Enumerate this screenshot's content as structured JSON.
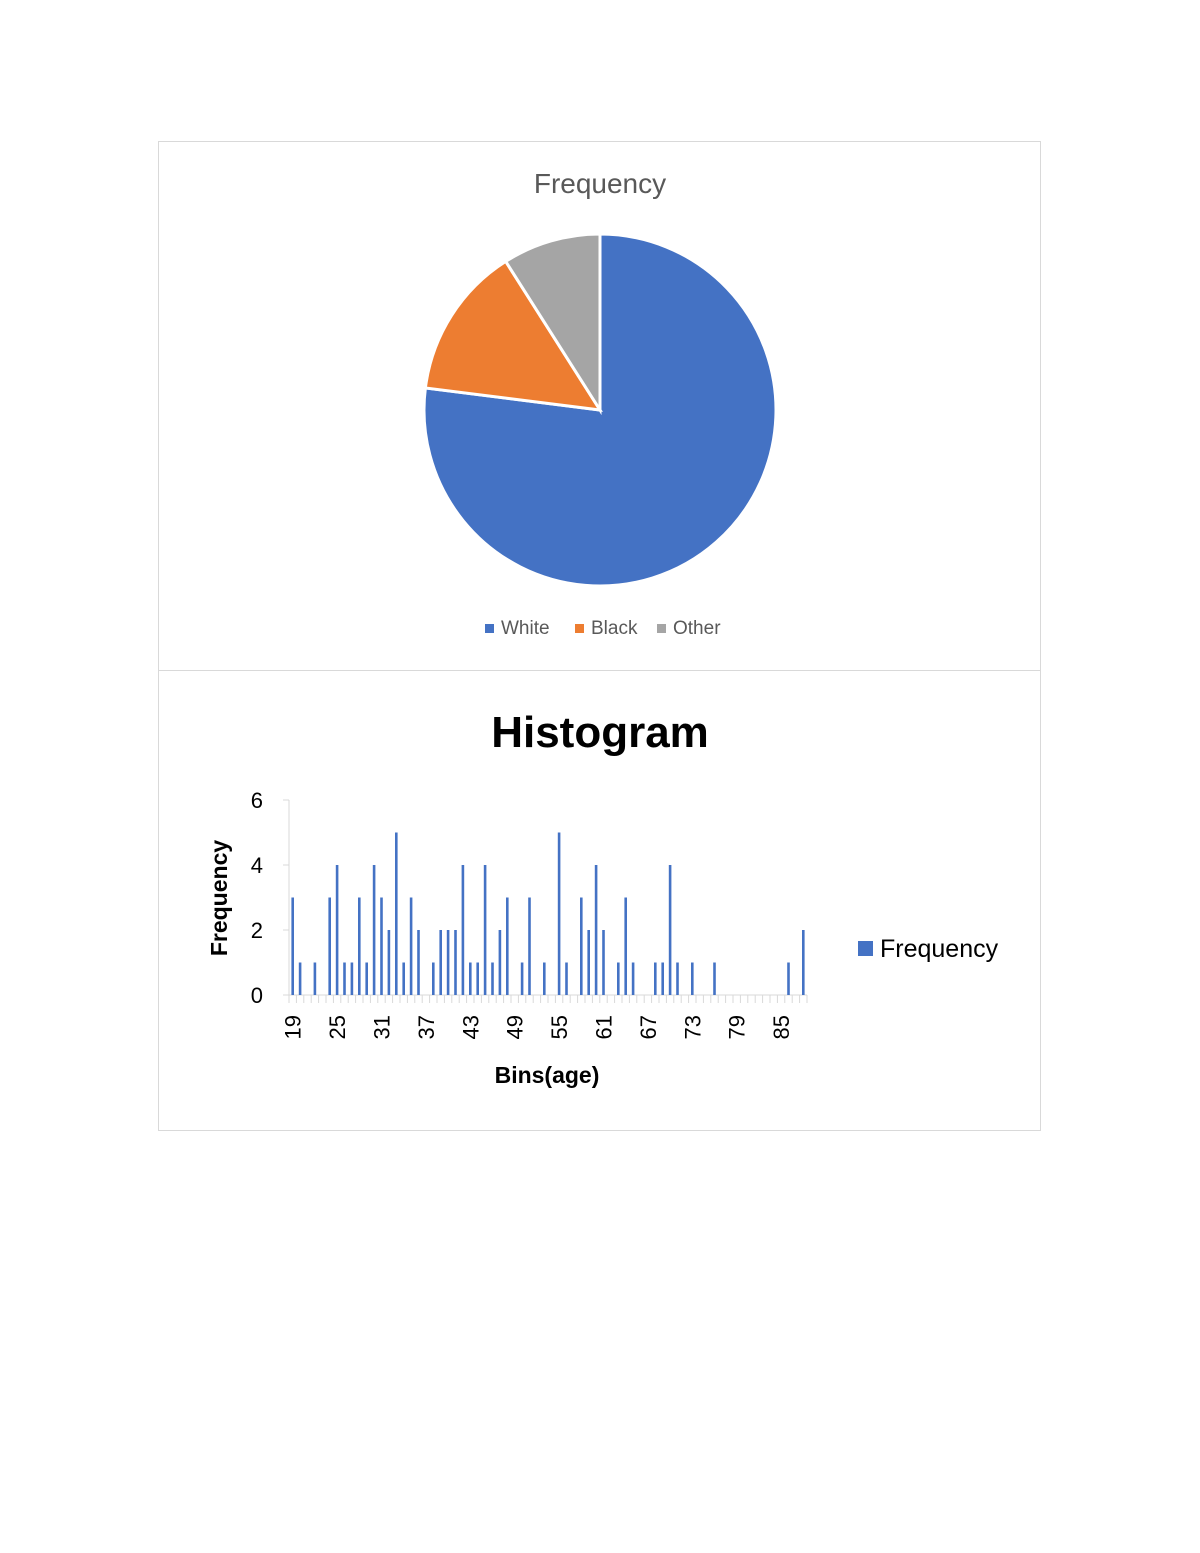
{
  "chart_data": [
    {
      "type": "pie",
      "title": "Frequency",
      "categories": [
        "White",
        "Black",
        "Other"
      ],
      "values": [
        77,
        14,
        9
      ],
      "colors": [
        "#4472C4",
        "#ED7D31",
        "#A5A5A5"
      ],
      "legend_position": "bottom"
    },
    {
      "type": "bar",
      "title": "Histogram",
      "xlabel": "Bins(age)",
      "ylabel": "Frequency",
      "x": [
        19,
        20,
        21,
        22,
        23,
        24,
        25,
        26,
        27,
        28,
        29,
        30,
        31,
        32,
        33,
        34,
        35,
        36,
        37,
        38,
        39,
        40,
        41,
        42,
        43,
        44,
        45,
        46,
        47,
        48,
        49,
        50,
        51,
        52,
        53,
        54,
        55,
        56,
        57,
        58,
        59,
        60,
        61,
        62,
        63,
        64,
        65,
        66,
        67,
        68,
        69,
        70,
        71,
        72,
        73,
        74,
        75,
        76,
        77,
        78,
        79,
        80,
        81,
        82,
        83,
        84,
        85,
        86,
        87,
        88
      ],
      "tick_labels": [
        "19",
        "25",
        "31",
        "37",
        "43",
        "49",
        "55",
        "61",
        "67",
        "73",
        "79",
        "85"
      ],
      "series": [
        {
          "name": "Frequency",
          "values": [
            3,
            1,
            0,
            1,
            0,
            3,
            4,
            1,
            1,
            3,
            1,
            4,
            3,
            2,
            5,
            1,
            3,
            2,
            0,
            1,
            2,
            2,
            2,
            4,
            1,
            1,
            4,
            1,
            2,
            3,
            0,
            1,
            3,
            0,
            1,
            0,
            5,
            1,
            0,
            3,
            2,
            4,
            2,
            0,
            1,
            3,
            1,
            0,
            0,
            1,
            1,
            4,
            1,
            0,
            1,
            0,
            0,
            1,
            0,
            0,
            0,
            0,
            0,
            0,
            0,
            0,
            0,
            1,
            0,
            2
          ],
          "color": "#4472C4"
        }
      ],
      "ylim": [
        0,
        6
      ],
      "yticks": [
        0,
        2,
        4,
        6
      ],
      "grid": false,
      "legend_position": "right"
    }
  ]
}
